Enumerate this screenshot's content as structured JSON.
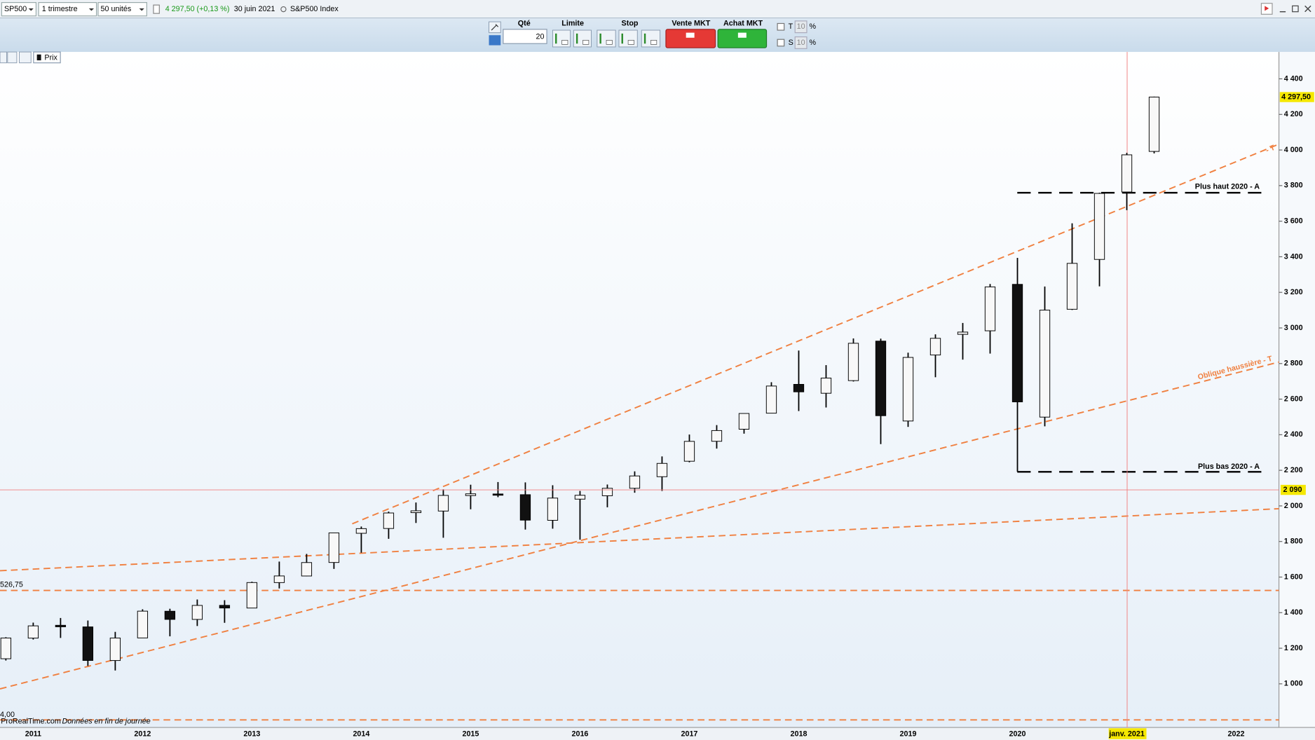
{
  "toolbar": {
    "symbol": "SP500",
    "period": "1 trimestre",
    "units": "50 unités",
    "last_price": "4 297,50 (+0,13 %)",
    "date": "30 juin 2021",
    "instrument": "S&P500 Index"
  },
  "order_panel": {
    "qty_label": "Qté",
    "qty": "20",
    "limit": "Limite",
    "stop": "Stop",
    "sell": "Vente MKT",
    "buy": "Achat MKT",
    "t_label": "T",
    "t_value": "10",
    "t_unit": "%",
    "s_label": "S",
    "s_value": "10",
    "s_unit": "%"
  },
  "chart_data": {
    "type": "candlestick",
    "legend": "Prix",
    "categories": [
      null,
      "2011",
      null,
      null,
      null,
      "2012",
      null,
      null,
      null,
      "2013",
      null,
      null,
      null,
      "2014",
      null,
      null,
      null,
      "2015",
      null,
      null,
      null,
      "2016",
      null,
      null,
      null,
      "2017",
      null,
      null,
      null,
      "2018",
      null,
      null,
      null,
      "2019",
      null,
      null,
      null,
      "2020",
      null,
      null,
      null,
      "janv. 2021",
      null,
      null,
      null,
      "2022"
    ],
    "open": [
      1141,
      1257,
      1329,
      1320,
      1131,
      1258,
      1408,
      1362,
      1441,
      1426,
      1569,
      1606,
      1682,
      1846,
      1873,
      1962,
      1971,
      2058,
      2067,
      2063,
      1919,
      2038,
      2057,
      2099,
      2164,
      2251,
      2363,
      2431,
      2521,
      2683,
      2633,
      2704,
      2926,
      2477,
      2848,
      2964,
      2984,
      3245,
      2499,
      3105,
      3385,
      3764,
      3992,
      null,
      null,
      null
    ],
    "high": [
      1262,
      1344,
      1370,
      1356,
      1292,
      1419,
      1422,
      1474,
      1470,
      1574,
      1687,
      1730,
      1849,
      1884,
      1968,
      2019,
      2093,
      2119,
      2134,
      2132,
      2116,
      2084,
      2120,
      2194,
      2278,
      2401,
      2454,
      2519,
      2695,
      2873,
      2791,
      2941,
      2940,
      2861,
      2964,
      3028,
      3247,
      3394,
      3233,
      3588,
      3760,
      3984,
      4300,
      null,
      null,
      null
    ],
    "low": [
      1131,
      1249,
      1258,
      1101,
      1075,
      1258,
      1267,
      1325,
      1343,
      1426,
      1536,
      1604,
      1646,
      1737,
      1815,
      1904,
      1821,
      1981,
      2049,
      1867,
      1872,
      1810,
      1992,
      2074,
      2084,
      2245,
      2322,
      2406,
      2520,
      2533,
      2553,
      2699,
      2347,
      2444,
      2723,
      2822,
      2856,
      2192,
      2447,
      3101,
      3234,
      3662,
      3981,
      null,
      null,
      null
    ],
    "close": [
      1257.6,
      1325.8,
      1320.6,
      1131.4,
      1257.6,
      1408.5,
      1362.2,
      1440.7,
      1426.2,
      1569.2,
      1606.3,
      1681.6,
      1848.4,
      1872.3,
      1960.2,
      1972.3,
      2058.9,
      2067.9,
      2063.1,
      1920.0,
      2043.9,
      2059.7,
      2098.9,
      2168.3,
      2238.8,
      2362.7,
      2423.4,
      2519.4,
      2673.6,
      2640.9,
      2718.4,
      2913.9,
      2506.9,
      2834.4,
      2941.8,
      2976.7,
      3230.8,
      2584.6,
      3100.3,
      3363.0,
      3756.1,
      3972.9,
      4297.5,
      null,
      null,
      null
    ],
    "up_color": "#f8f8f8",
    "down_color": "#111111",
    "ylim": [
      755,
      4551
    ],
    "yticks": [
      {
        "value": 1000,
        "label": "1 000"
      },
      {
        "value": 1200,
        "label": "1 200"
      },
      {
        "value": 1400,
        "label": "1 400"
      },
      {
        "value": 1600,
        "label": "1 600"
      },
      {
        "value": 1800,
        "label": "1 800"
      },
      {
        "value": 2000,
        "label": "2 000"
      },
      {
        "value": 2200,
        "label": "2 200"
      },
      {
        "value": 2400,
        "label": "2 400"
      },
      {
        "value": 2600,
        "label": "2 600"
      },
      {
        "value": 2800,
        "label": "2 800"
      },
      {
        "value": 3000,
        "label": "3 000"
      },
      {
        "value": 3200,
        "label": "3 200"
      },
      {
        "value": 3400,
        "label": "3 400"
      },
      {
        "value": 3600,
        "label": "3 600"
      },
      {
        "value": 3800,
        "label": "3 800"
      },
      {
        "value": 4000,
        "label": "4 000"
      },
      {
        "value": 4200,
        "label": "4 200"
      },
      {
        "value": 4400,
        "label": "4 400"
      }
    ],
    "price_label": {
      "value": 4297.5,
      "label": "4 297,50"
    },
    "cursor": {
      "value": 2090,
      "label": "2 090"
    },
    "annotations": {
      "high_2020": "Plus haut 2020 - A",
      "low_2020": "Plus bas 2020 - A",
      "oblique": "Oblique haussière - T",
      "upper": "- T",
      "level_1": "526,75",
      "level_2": "4,00"
    },
    "footer": "ProRealTime.com",
    "footer_note": "Données en fin de journée"
  }
}
